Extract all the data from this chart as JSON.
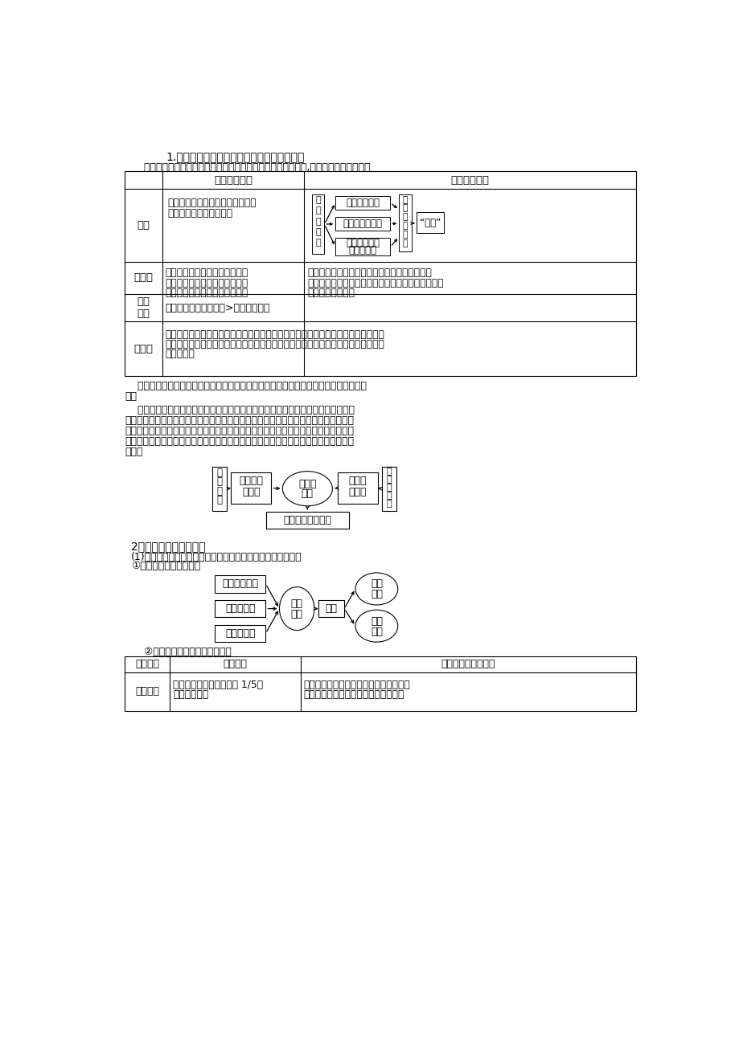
{
  "bg_color": "#ffffff",
  "title1": "1.环境人口容量与人口合理容量的区别与联系",
  "subtitle1": "    环境人口容量与人口合理容量是两个既有联系又有区别的概念,两者间可通过下表分析",
  "col1_header": "环境人口容量",
  "col2_header": "人口合理容量",
  "row_labels": [
    "概念",
    "强调点",
    "大小\n关系",
    "共同点"
  ],
  "concept_col1": "一个地区、一个国家，乃至整个地\n球能持续供养的人口能量",
  "emphasis_col1": "强调的是一个地区的资源环境所\n能承载的最大人口数量（极限人\n口），即地球最多能养活多少人",
  "emphasis_col2": "强调在保证合理健康的生活水平条件下和能促进\n可持续发展前提下的适度人口（最佳人口），即地球\n上适合养活多少人",
  "size_text": "某一地区环境人口容量>人口合理容量",
  "common_text": "由于制约的因素不确定，所以在不同的历史时期，造成人口容量具有不确定性，但在\n具体时期，制约因素相对稳定的情况下，可以对人口容量进行相对定量估计，即具有\n相对确定性",
  "note1": "    说明：发展中国家和发达国家的人口合理容量影响因素相似，但每种因素的作用不尽相\n同。",
  "para1_lines": [
    "    发展中国家和发达国家生产力发展水平不同、所处的经济发展阶段不同。发达国家",
    "科学技术水平高，人均消费水平高，消耗了世界上的大部分资源，并依靠其优势向发展",
    "中国家转移污染，因而人均消费水平是给资源和环境造成压力的主要因素；发展中国家",
    "科技水平低，人均消费水平低，人口增长过快是带来资源和环境问题的主要因素。图示",
    "如下："
  ],
  "diag1_box1": "合理生活方式",
  "diag1_box2": "健康的生活水平",
  "diag1_box3a": "不妨碍未来人",
  "diag1_box3b": "口生活质量",
  "diag1_left_chars": [
    "国",
    "家",
    "或",
    "地",
    "区"
  ],
  "diag1_right_chars": [
    "最",
    "适",
    "宜",
    "人",
    "口",
    "数"
  ],
  "diag1_xushu": "“虚数”",
  "diag2_left_chars": [
    "发",
    "达",
    "国",
    "家"
  ],
  "diag2_right_chars": [
    "发",
    "展",
    "中",
    "国",
    "家"
  ],
  "diag2_box_left": [
    "人均消费",
    "水平高"
  ],
  "diag2_ellipse": [
    "资源和",
    "环境"
  ],
  "diag2_box_right": [
    "人口过",
    "快增长"
  ],
  "diag2_bottom": "制约人口合理容量",
  "title2": "2．人口合理容量的意义",
  "text2a": "(1)对于制定一个地区或一个国家的人口战略和人口政策的意义",
  "text2b": "①当前世界上的人口问题",
  "diag3_boxes": [
    "人口过快增长",
    "人口城市化",
    "人口老龄化"
  ],
  "diag3_center": [
    "人口",
    "问题"
  ],
  "diag3_trigger": "引发",
  "diag3_right": [
    [
      "资源",
      "问题"
    ],
    [
      "环境",
      "问题"
    ]
  ],
  "text3": "    ②不同的地区所出现的人口问题",
  "tbl2_h1": "不同地区",
  "tbl2_h2": "人口问题",
  "tbl2_h3": "环境问题和资源问题",
  "tbl2_r1c1": "发达地区",
  "tbl2_r1c2a": "人口虽然仅占世界人口的 1/5，",
  "tbl2_r1c2b": "但消费水平高",
  "tbl2_r1c3a": "实际消耗的资源总量很大，索取资源和转",
  "tbl2_r1c3b": "嫁有害生产的地域远远超出本国的范围"
}
